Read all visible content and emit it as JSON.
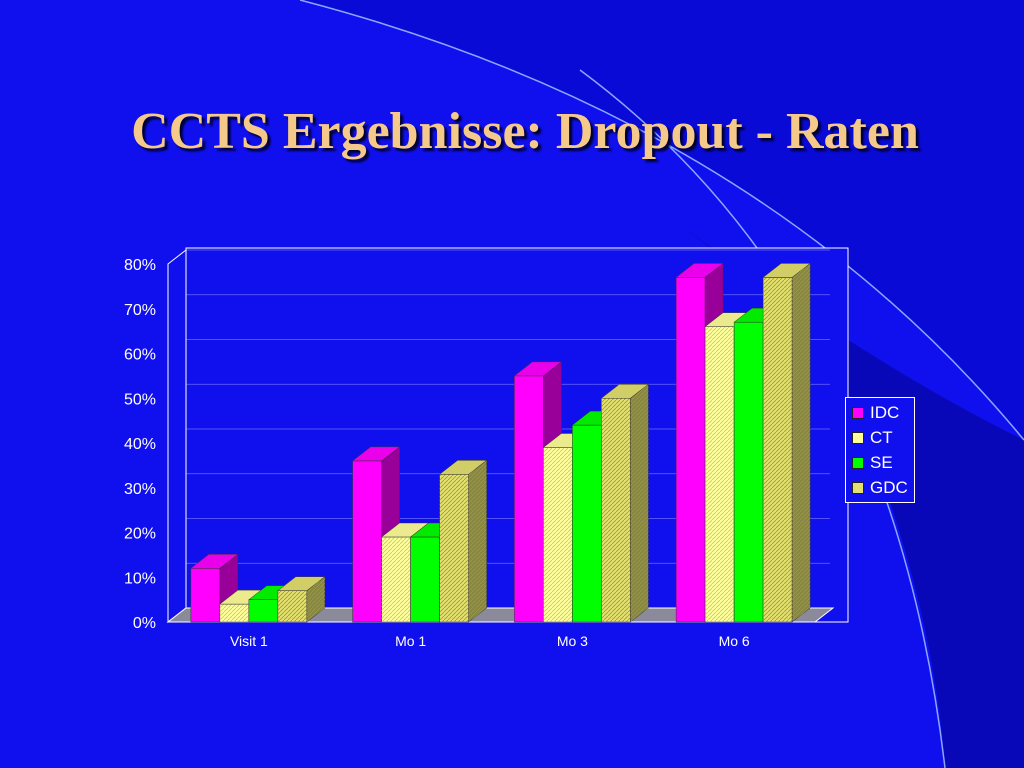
{
  "slide": {
    "title": "CCTS Ergebnisse: Dropout - Raten"
  },
  "chart_data": {
    "type": "bar",
    "categories": [
      "Visit 1",
      "Mo 1",
      "Mo 3",
      "Mo 6"
    ],
    "series": [
      {
        "name": "IDC",
        "values": [
          12,
          36,
          55,
          77
        ],
        "color": "#ff00ff"
      },
      {
        "name": "CT",
        "values": [
          4,
          19,
          39,
          66
        ],
        "color": "#ffff99"
      },
      {
        "name": "SE",
        "values": [
          5,
          19,
          44,
          67
        ],
        "color": "#00ff00"
      },
      {
        "name": "GDC",
        "values": [
          7,
          33,
          50,
          77
        ],
        "color": "#e3e070"
      }
    ],
    "ylim": [
      0,
      80
    ],
    "y_ticks": [
      "0%",
      "10%",
      "20%",
      "30%",
      "40%",
      "50%",
      "60%",
      "70%",
      "80%"
    ],
    "grid": true,
    "legend_position": "right"
  }
}
